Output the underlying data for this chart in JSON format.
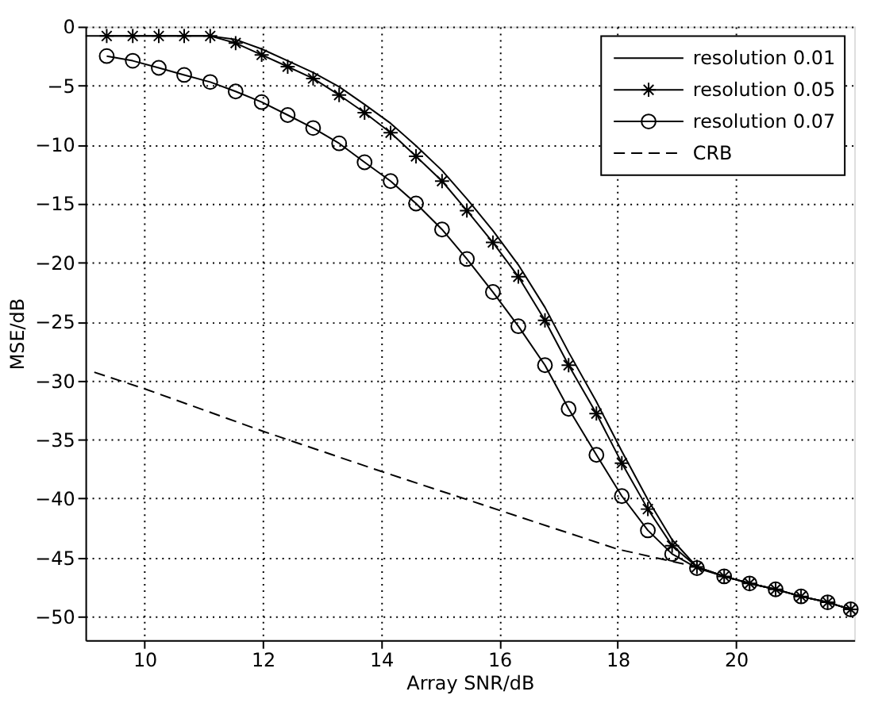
{
  "chart_data": {
    "type": "line",
    "xlabel": "Array SNR/dB",
    "ylabel": "MSE/dB",
    "x": [
      9.36,
      9.8,
      10.24,
      10.67,
      11.11,
      11.54,
      11.98,
      12.42,
      12.85,
      13.29,
      13.72,
      14.16,
      14.59,
      15.03,
      15.45,
      15.89,
      16.32,
      16.77,
      17.17,
      17.64,
      18.07,
      18.51,
      18.92,
      19.34,
      19.8,
      20.23,
      20.67,
      21.1,
      21.55,
      21.94
    ],
    "series": [
      {
        "name": "resolution 0.01",
        "color": "#000000",
        "marker": "none",
        "line_style": "solid",
        "x": [
          9.0,
          9.36,
          9.8,
          10.24,
          10.67,
          11.11,
          11.54,
          11.98,
          12.42,
          12.85,
          13.29,
          13.72,
          14.16,
          14.59,
          15.03,
          15.45,
          15.89,
          16.32,
          16.77,
          17.17,
          17.64,
          18.07,
          18.51,
          18.92,
          19.34,
          19.8,
          20.23,
          20.67,
          21.1,
          21.55,
          21.94
        ],
        "values": [
          -0.8,
          -0.8,
          -0.8,
          -0.8,
          -0.8,
          -0.8,
          -1.1,
          -1.9,
          -2.9,
          -3.9,
          -5.1,
          -6.6,
          -8.2,
          -10.1,
          -12.2,
          -14.6,
          -17.3,
          -20.2,
          -23.8,
          -27.6,
          -31.8,
          -36.0,
          -40.1,
          -43.5,
          -45.8,
          -46.6,
          -47.2,
          -47.7,
          -48.3,
          -48.8,
          -49.4
        ]
      },
      {
        "name": "resolution 0.05",
        "color": "#000000",
        "marker": "cross",
        "line_style": "solid",
        "values": [
          -0.8,
          -0.8,
          -0.8,
          -0.8,
          -0.8,
          -1.4,
          -2.4,
          -3.4,
          -4.4,
          -5.8,
          -7.3,
          -9.0,
          -11.0,
          -13.1,
          -15.6,
          -18.3,
          -21.2,
          -24.9,
          -28.7,
          -32.8,
          -37.0,
          -40.9,
          -44.0,
          -45.8,
          -46.6,
          -47.2,
          -47.7,
          -48.3,
          -48.8,
          -49.4
        ]
      },
      {
        "name": "resolution 0.07",
        "color": "#000000",
        "marker": "circle",
        "line_style": "solid",
        "values": [
          -2.5,
          -2.9,
          -3.5,
          -4.1,
          -4.7,
          -5.5,
          -6.4,
          -7.5,
          -8.6,
          -9.9,
          -11.5,
          -13.1,
          -15.0,
          -17.2,
          -19.7,
          -22.5,
          -25.4,
          -28.7,
          -32.4,
          -36.3,
          -39.8,
          -42.7,
          -44.7,
          -45.9,
          -46.6,
          -47.2,
          -47.7,
          -48.3,
          -48.8,
          -49.4
        ]
      },
      {
        "name": "CRB",
        "color": "#000000",
        "marker": "none",
        "line_style": "dashed",
        "x": [
          9.15,
          10,
          12,
          14,
          16,
          18,
          19.34,
          19.8,
          20.23,
          20.67,
          21.1,
          21.55,
          21.94
        ],
        "values": [
          -29.3,
          -30.7,
          -34.3,
          -37.7,
          -41.0,
          -44.3,
          -45.8,
          -46.6,
          -47.2,
          -47.7,
          -48.3,
          -48.8,
          -49.4
        ]
      }
    ],
    "xlim": [
      9,
      22
    ],
    "ylim": [
      -52,
      0
    ],
    "xticks": [
      10,
      12,
      14,
      16,
      18,
      20
    ],
    "yticks": [
      0,
      -5,
      -10,
      -15,
      -20,
      -25,
      -30,
      -35,
      -40,
      -45,
      -50
    ],
    "grid": true,
    "legend": "top right"
  }
}
